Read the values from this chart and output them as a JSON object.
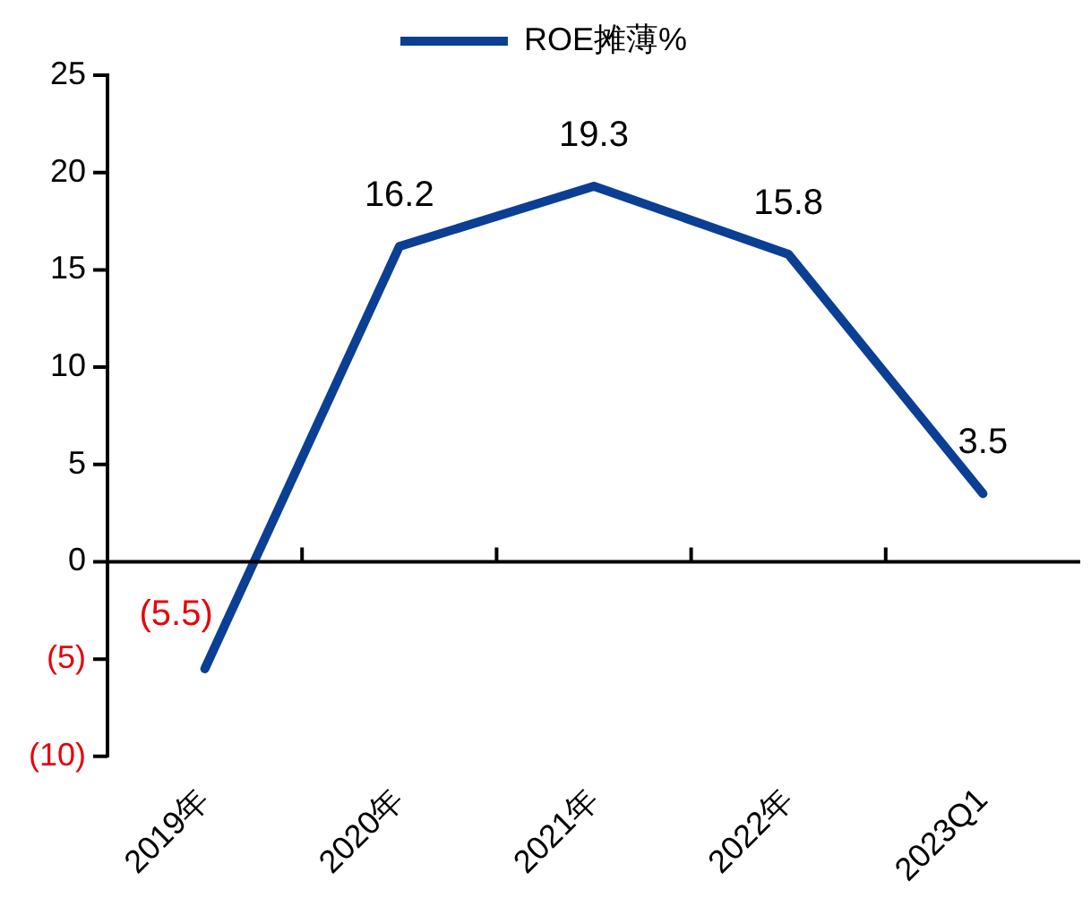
{
  "chart_data": {
    "type": "line",
    "categories": [
      "2019年",
      "2020年",
      "2021年",
      "2022年",
      "2023Q1"
    ],
    "series": [
      {
        "name": "ROE摊薄%",
        "color": "#0b3f94",
        "values": [
          -5.5,
          16.2,
          19.3,
          15.8,
          3.5
        ],
        "value_labels": [
          "(5.5)",
          "16.2",
          "19.3",
          "15.8",
          "3.5"
        ]
      }
    ],
    "ylim": [
      -10,
      25
    ],
    "yticks": [
      {
        "value": -10,
        "label": "(10)"
      },
      {
        "value": -5,
        "label": "(5)"
      },
      0,
      5,
      10,
      15,
      20,
      25
    ],
    "ref_lines": [
      {
        "axis": "y",
        "value": 0,
        "color": "#000000"
      }
    ],
    "grid": false,
    "legend": "top",
    "marker": "none",
    "line_style": "solid"
  }
}
